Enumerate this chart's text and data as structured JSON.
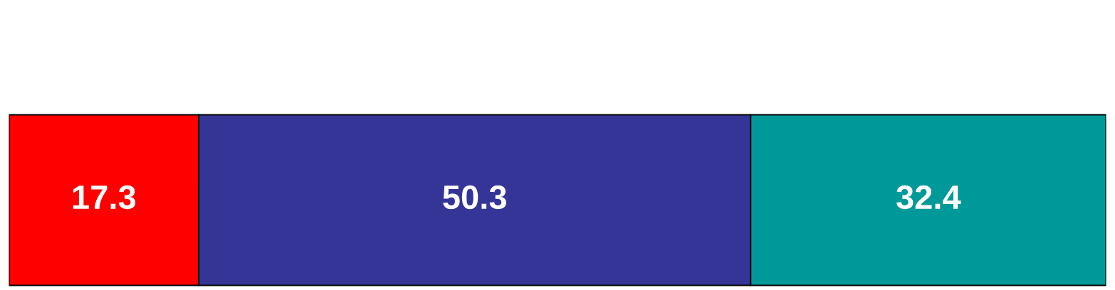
{
  "chart_data": {
    "type": "bar",
    "orientation": "horizontal",
    "stacked": true,
    "data_labels": true,
    "categories": [
      null
    ],
    "series": [
      {
        "color": "#ff0000",
        "values": [
          17.3
        ]
      },
      {
        "color": "#353598",
        "values": [
          50.3
        ]
      },
      {
        "color": "#009999",
        "values": [
          32.4
        ]
      }
    ]
  }
}
